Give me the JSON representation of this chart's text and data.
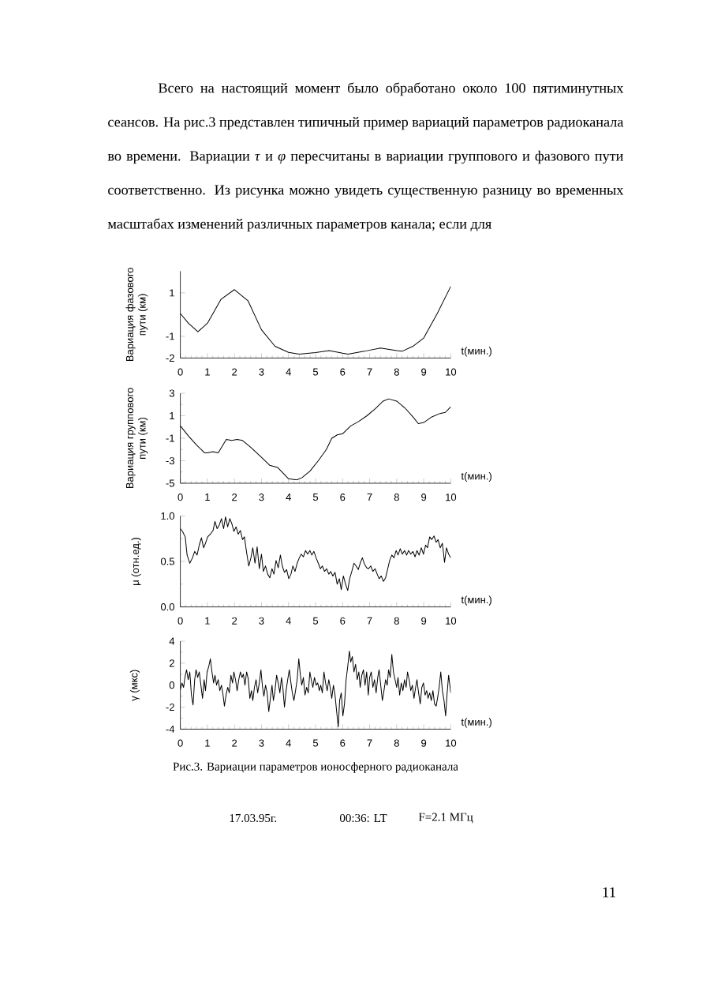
{
  "chart_data": [
    {
      "type": "line",
      "xlabel": "t(мин.)",
      "ylabel": "Вариация фазового пути (км)",
      "color": "#000000",
      "xlim": [
        0,
        10
      ],
      "ylim": [
        -2,
        2
      ],
      "xticks": [
        0,
        1,
        2,
        3,
        4,
        5,
        6,
        7,
        8,
        9,
        10
      ],
      "yticks": [
        -2,
        -1,
        1
      ],
      "x": [
        0,
        0.3,
        0.65,
        1.0,
        1.5,
        2.0,
        2.5,
        3.0,
        3.5,
        4.0,
        4.4,
        5.0,
        5.5,
        6.0,
        6.2,
        6.8,
        7.4,
        8.0,
        8.2,
        8.6,
        9.0,
        9.5,
        10
      ],
      "values": [
        0.05,
        -0.4,
        -0.79,
        -0.4,
        0.7,
        1.15,
        0.64,
        -0.7,
        -1.46,
        -1.74,
        -1.82,
        -1.75,
        -1.66,
        -1.78,
        -1.82,
        -1.69,
        -1.54,
        -1.66,
        -1.69,
        -1.46,
        -1.08,
        0.05,
        1.3
      ],
      "annotations": [
        "Всего на настоящий момент было обработано около 100 пятиминутных сеансов. На рис.3 представлен типичный пример вариаций параметров радиоканала во времени. Вариации *τ* и *φ* пересчитаны в вариации группового и фазового пути соответственно. Из рисунка можно увидеть существенную разницу во временных масштабах изменений различных параметров канала; если для"
      ]
    },
    {
      "type": "line",
      "xlabel": "t(мин.)",
      "ylabel": "Вариация группового пути (км)",
      "color": "#000000",
      "xlim": [
        0,
        10
      ],
      "ylim": [
        -5,
        3
      ],
      "xticks": [
        0,
        1,
        2,
        3,
        4,
        5,
        6,
        7,
        8,
        9,
        10
      ],
      "yticks": [
        -5,
        -3,
        -1,
        1,
        3
      ],
      "x": [
        0,
        0.3,
        0.6,
        0.9,
        1.0,
        1.2,
        1.4,
        1.7,
        1.9,
        2.1,
        2.3,
        2.6,
        3.0,
        3.3,
        3.6,
        3.8,
        4.0,
        4.3,
        4.5,
        4.8,
        5.1,
        5.4,
        5.6,
        5.8,
        6.0,
        6.3,
        6.6,
        6.9,
        7.2,
        7.5,
        7.7,
        8.0,
        8.3,
        8.6,
        8.8,
        9.0,
        9.3,
        9.6,
        9.8,
        10
      ],
      "values": [
        0.1,
        -0.8,
        -1.6,
        -2.3,
        -2.3,
        -2.2,
        -2.3,
        -1.1,
        -1.2,
        -1.1,
        -1.2,
        -1.8,
        -2.7,
        -3.4,
        -3.6,
        -4.1,
        -4.6,
        -4.7,
        -4.5,
        -3.9,
        -3.0,
        -2.0,
        -1.0,
        -0.7,
        -0.6,
        0.1,
        0.5,
        1.0,
        1.6,
        2.3,
        2.5,
        2.3,
        1.7,
        0.9,
        0.3,
        0.4,
        0.9,
        1.2,
        1.3,
        1.8
      ]
    },
    {
      "type": "line",
      "xlabel": "t(мин.)",
      "ylabel": "μ (отн.ед.)",
      "color": "#000000",
      "xlim": [
        0,
        10
      ],
      "ylim": [
        0,
        1
      ],
      "xticks": [
        0,
        1,
        2,
        3,
        4,
        5,
        6,
        7,
        8,
        9,
        10
      ],
      "yticks": [
        {
          "value": 0,
          "label": "0.0"
        },
        {
          "value": 0.5,
          "label": "0.5"
        },
        {
          "value": 1,
          "label": "1.0"
        }
      ],
      "x": [
        0,
        0.08,
        0.18,
        0.25,
        0.35,
        0.45,
        0.53,
        0.62,
        0.7,
        0.78,
        0.86,
        0.93,
        1.01,
        1.11,
        1.21,
        1.28,
        1.36,
        1.44,
        1.52,
        1.6,
        1.67,
        1.75,
        1.83,
        1.91,
        1.98,
        2.06,
        2.14,
        2.22,
        2.3,
        2.37,
        2.45,
        2.53,
        2.61,
        2.68,
        2.76,
        2.84,
        2.92,
        3.0,
        3.07,
        3.15,
        3.23,
        3.31,
        3.39,
        3.46,
        3.54,
        3.62,
        3.7,
        3.77,
        3.85,
        3.93,
        4.01,
        4.09,
        4.16,
        4.24,
        4.32,
        4.4,
        4.47,
        4.55,
        4.63,
        4.71,
        4.79,
        4.86,
        4.94,
        5.02,
        5.1,
        5.18,
        5.25,
        5.33,
        5.41,
        5.49,
        5.56,
        5.64,
        5.72,
        5.8,
        5.88,
        5.95,
        6.03,
        6.11,
        6.19,
        6.26,
        6.34,
        6.42,
        6.5,
        6.58,
        6.65,
        6.73,
        6.81,
        6.89,
        6.96,
        7.04,
        7.12,
        7.2,
        7.28,
        7.35,
        7.43,
        7.51,
        7.59,
        7.67,
        7.74,
        7.82,
        7.9,
        7.98,
        8.05,
        8.13,
        8.21,
        8.29,
        8.37,
        8.44,
        8.52,
        8.6,
        8.68,
        8.75,
        8.83,
        8.91,
        8.99,
        9.07,
        9.14,
        9.22,
        9.3,
        9.38,
        9.46,
        9.53,
        9.61,
        9.69,
        9.77,
        9.84,
        9.92,
        10
      ],
      "values": [
        0.86,
        0.83,
        0.77,
        0.57,
        0.48,
        0.54,
        0.61,
        0.57,
        0.68,
        0.76,
        0.65,
        0.7,
        0.77,
        0.8,
        0.84,
        0.94,
        0.86,
        0.9,
        0.97,
        0.86,
        0.99,
        0.88,
        0.97,
        0.91,
        0.83,
        0.88,
        0.8,
        0.84,
        0.74,
        0.77,
        0.6,
        0.45,
        0.54,
        0.65,
        0.48,
        0.66,
        0.42,
        0.58,
        0.39,
        0.45,
        0.36,
        0.32,
        0.42,
        0.36,
        0.51,
        0.43,
        0.57,
        0.45,
        0.38,
        0.41,
        0.31,
        0.36,
        0.45,
        0.39,
        0.48,
        0.54,
        0.58,
        0.55,
        0.62,
        0.58,
        0.62,
        0.57,
        0.61,
        0.54,
        0.48,
        0.42,
        0.45,
        0.39,
        0.42,
        0.36,
        0.39,
        0.34,
        0.38,
        0.25,
        0.31,
        0.19,
        0.34,
        0.25,
        0.18,
        0.31,
        0.39,
        0.48,
        0.45,
        0.41,
        0.48,
        0.54,
        0.47,
        0.43,
        0.42,
        0.45,
        0.39,
        0.42,
        0.36,
        0.31,
        0.34,
        0.28,
        0.32,
        0.42,
        0.51,
        0.57,
        0.54,
        0.62,
        0.57,
        0.64,
        0.58,
        0.62,
        0.57,
        0.62,
        0.58,
        0.61,
        0.55,
        0.62,
        0.57,
        0.65,
        0.58,
        0.68,
        0.65,
        0.77,
        0.74,
        0.78,
        0.71,
        0.74,
        0.65,
        0.7,
        0.49,
        0.65,
        0.58,
        0.54
      ]
    },
    {
      "type": "line",
      "xlabel": "t(мин.)",
      "ylabel": "γ (мкс)",
      "color": "#000000",
      "xlim": [
        0,
        10
      ],
      "ylim": [
        -4,
        4
      ],
      "xticks": [
        0,
        1,
        2,
        3,
        4,
        5,
        6,
        7,
        8,
        9,
        10
      ],
      "yticks": [
        -4,
        -2,
        0,
        2,
        4
      ],
      "x": [
        0,
        0.06,
        0.12,
        0.17,
        0.23,
        0.29,
        0.35,
        0.41,
        0.47,
        0.53,
        0.58,
        0.64,
        0.7,
        0.76,
        0.82,
        0.88,
        0.93,
        0.99,
        1.05,
        1.11,
        1.17,
        1.23,
        1.28,
        1.34,
        1.4,
        1.46,
        1.52,
        1.58,
        1.63,
        1.69,
        1.75,
        1.81,
        1.87,
        1.93,
        1.98,
        2.04,
        2.1,
        2.16,
        2.22,
        2.28,
        2.33,
        2.39,
        2.45,
        2.51,
        2.57,
        2.63,
        2.68,
        2.74,
        2.8,
        2.86,
        2.92,
        2.98,
        3.04,
        3.09,
        3.15,
        3.21,
        3.27,
        3.33,
        3.39,
        3.44,
        3.5,
        3.56,
        3.62,
        3.68,
        3.74,
        3.79,
        3.85,
        3.91,
        3.97,
        4.03,
        4.09,
        4.14,
        4.2,
        4.26,
        4.32,
        4.38,
        4.44,
        4.49,
        4.55,
        4.61,
        4.67,
        4.73,
        4.79,
        4.84,
        4.9,
        4.96,
        5.02,
        5.08,
        5.14,
        5.19,
        5.25,
        5.31,
        5.37,
        5.43,
        5.49,
        5.54,
        5.6,
        5.66,
        5.72,
        5.78,
        5.84,
        5.89,
        5.95,
        6.01,
        6.07,
        6.13,
        6.19,
        6.25,
        6.3,
        6.36,
        6.42,
        6.48,
        6.54,
        6.6,
        6.65,
        6.71,
        6.77,
        6.83,
        6.89,
        6.95,
        7.0,
        7.06,
        7.12,
        7.18,
        7.24,
        7.3,
        7.35,
        7.41,
        7.47,
        7.53,
        7.59,
        7.65,
        7.7,
        7.76,
        7.82,
        7.88,
        7.94,
        8.0,
        8.05,
        8.11,
        8.17,
        8.23,
        8.29,
        8.35,
        8.4,
        8.46,
        8.52,
        8.58,
        8.64,
        8.7,
        8.75,
        8.81,
        8.87,
        8.93,
        8.99,
        9.05,
        9.11,
        9.16,
        9.22,
        9.28,
        9.34,
        9.4,
        9.46,
        9.51,
        9.57,
        9.63,
        9.69,
        9.75,
        9.81,
        9.86,
        9.92,
        10
      ],
      "values": [
        -0.4,
        0.2,
        -0.2,
        0.7,
        1.4,
        0.5,
        1.2,
        -0.9,
        -1.8,
        0.5,
        1.4,
        0.7,
        1.2,
        0.0,
        -1.2,
        0.5,
        -0.5,
        1.2,
        1.7,
        2.4,
        1.2,
        0.2,
        0.9,
        0.0,
        0.5,
        -0.5,
        0.0,
        -0.9,
        -1.9,
        -0.9,
        -0.2,
        -0.7,
        0.9,
        0.2,
        1.2,
        0.5,
        -0.5,
        0.5,
        1.2,
        0.7,
        1.0,
        0.0,
        1.2,
        0.6,
        -1.2,
        -0.5,
        -1.4,
        -0.2,
        0.5,
        -0.7,
        0.2,
        1.4,
        -0.2,
        -1.0,
        0.0,
        -0.7,
        -2.4,
        -1.2,
        0.0,
        -1.4,
        -0.5,
        0.9,
        0.2,
        -0.7,
        0.7,
        -0.2,
        -2.0,
        -0.5,
        0.5,
        1.4,
        0.2,
        -0.7,
        -1.4,
        -0.5,
        0.5,
        2.4,
        0.9,
        0.0,
        0.7,
        -0.9,
        -0.2,
        -0.7,
        1.2,
        0.5,
        -0.2,
        0.7,
        0.0,
        0.2,
        -0.5,
        0.0,
        -0.7,
        1.2,
        0.2,
        -0.5,
        0.5,
        -0.2,
        -1.2,
        0.0,
        -0.9,
        -2.4,
        -3.8,
        -1.4,
        -0.7,
        -2.8,
        -1.7,
        0.5,
        1.7,
        3.1,
        2.1,
        2.6,
        1.2,
        1.9,
        0.5,
        1.2,
        -0.2,
        0.9,
        1.4,
        0.0,
        1.2,
        -0.9,
        0.7,
        1.2,
        -0.2,
        0.5,
        -0.7,
        0.7,
        1.4,
        0.0,
        -1.4,
        -0.5,
        0.5,
        0.0,
        1.4,
        0.7,
        2.8,
        1.2,
        0.5,
        -0.2,
        0.7,
        -0.9,
        0.2,
        -0.5,
        0.5,
        -0.2,
        1.2,
        0.5,
        -0.5,
        0.0,
        -1.2,
        -0.2,
        0.5,
        -0.7,
        -1.7,
        -0.2,
        0.2,
        -0.9,
        -0.5,
        -1.2,
        -0.7,
        -1.4,
        -0.5,
        -1.7,
        -1.9,
        -1.2,
        -0.2,
        1.2,
        -0.5,
        -1.4,
        -2.8,
        -0.9,
        0.9,
        -0.7
      ],
      "annotations": [
        "Рис.3. Вариации параметров ионосферного радиоканала",
        "17.03.95г.",
        "00:36: LT",
        "F=2.1 МГц",
        "11"
      ]
    }
  ]
}
